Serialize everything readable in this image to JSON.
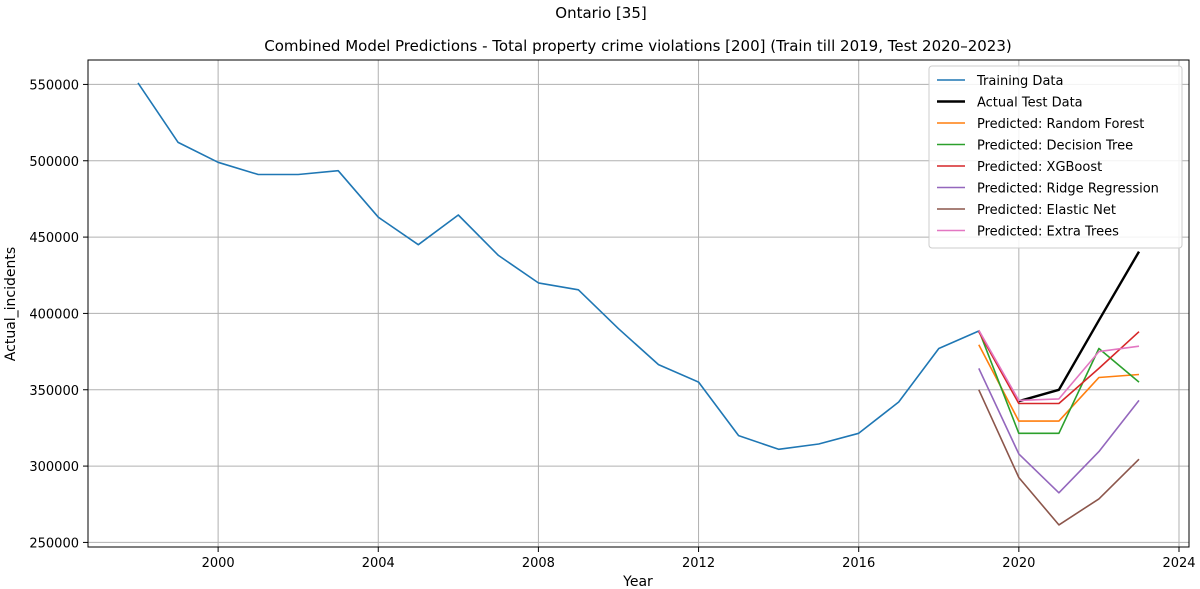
{
  "figure": {
    "suptitle": "Ontario [35]"
  },
  "chart_data": {
    "type": "line",
    "title": "Combined Model Predictions - Total property crime violations [200] (Train till 2019, Test 2020–2023)",
    "xlabel": "Year",
    "ylabel": "Actual_incidents",
    "xlim": [
      1996.75,
      2024.25
    ],
    "ylim": [
      247000,
      566000
    ],
    "xticks": [
      2000,
      2004,
      2008,
      2012,
      2016,
      2020,
      2024
    ],
    "yticks": [
      250000,
      300000,
      350000,
      400000,
      450000,
      500000,
      550000
    ],
    "grid": true,
    "legend_position": "top-right",
    "series": [
      {
        "name": "Training Data",
        "color": "#1f77b4",
        "width": 1.6,
        "x": [
          1998,
          1999,
          2000,
          2001,
          2002,
          2003,
          2004,
          2005,
          2006,
          2007,
          2008,
          2009,
          2010,
          2011,
          2012,
          2013,
          2014,
          2015,
          2016,
          2017,
          2018,
          2019
        ],
        "y": [
          551000,
          512000,
          499000,
          491000,
          491000,
          493500,
          463000,
          445000,
          464500,
          438000,
          420000,
          415500,
          390000,
          366500,
          355000,
          320000,
          311000,
          314500,
          321500,
          342000,
          377000,
          388500
        ]
      },
      {
        "name": "Actual Test Data",
        "color": "#000000",
        "width": 2.4,
        "x": [
          2020,
          2021,
          2022,
          2023
        ],
        "y": [
          342500,
          350000,
          395500,
          440500
        ]
      },
      {
        "name": "Predicted: Random Forest",
        "color": "#ff7f0e",
        "width": 1.6,
        "x": [
          2019,
          2020,
          2021,
          2022,
          2023
        ],
        "y": [
          379500,
          329500,
          329500,
          358000,
          360000
        ]
      },
      {
        "name": "Predicted: Decision Tree",
        "color": "#2ca02c",
        "width": 1.6,
        "x": [
          2019,
          2020,
          2021,
          2022,
          2023
        ],
        "y": [
          389000,
          321500,
          321500,
          377000,
          355000
        ]
      },
      {
        "name": "Predicted: XGBoost",
        "color": "#d62728",
        "width": 1.6,
        "x": [
          2019,
          2020,
          2021,
          2022,
          2023
        ],
        "y": [
          388000,
          341000,
          341000,
          364000,
          388000
        ]
      },
      {
        "name": "Predicted: Ridge Regression",
        "color": "#9467bd",
        "width": 1.6,
        "x": [
          2019,
          2020,
          2021,
          2022,
          2023
        ],
        "y": [
          364000,
          308000,
          282500,
          309500,
          343000
        ]
      },
      {
        "name": "Predicted: Elastic Net",
        "color": "#8c564b",
        "width": 1.6,
        "x": [
          2019,
          2020,
          2021,
          2022,
          2023
        ],
        "y": [
          350000,
          292500,
          261500,
          278500,
          304500
        ]
      },
      {
        "name": "Predicted: Extra Trees",
        "color": "#e377c2",
        "width": 1.6,
        "x": [
          2019,
          2020,
          2021,
          2022,
          2023
        ],
        "y": [
          389000,
          343000,
          344000,
          375000,
          378500
        ]
      }
    ]
  }
}
